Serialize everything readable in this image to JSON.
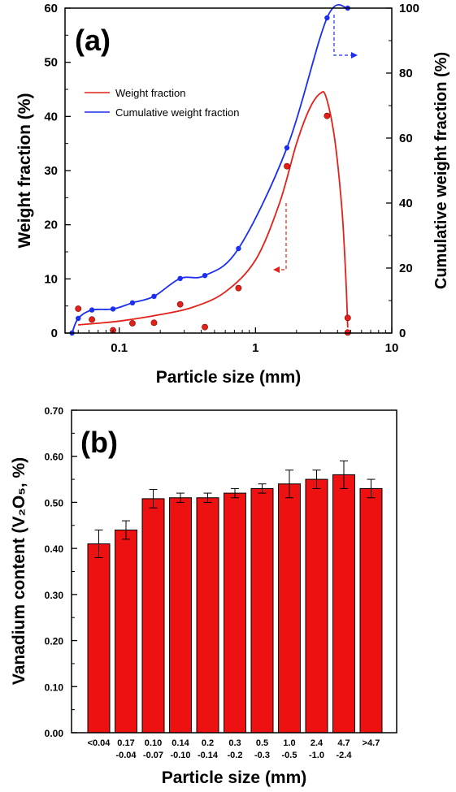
{
  "chart_data": [
    {
      "panel": "(a)",
      "type": "line",
      "xlabel": "Particle size (mm)",
      "ylabel": "Weight fraction (%)",
      "y2label": "Cumulative weight fraction (%)",
      "xscale": "log",
      "xlim": [
        0.04,
        10
      ],
      "ylim": [
        0,
        60
      ],
      "y2lim": [
        0,
        100
      ],
      "xticks": [
        0.1,
        1,
        10
      ],
      "xtick_labels": [
        "0.1",
        "1",
        "10"
      ],
      "yticks": [
        0,
        10,
        20,
        30,
        40,
        50,
        60
      ],
      "y2ticks": [
        0,
        20,
        40,
        60,
        80,
        100
      ],
      "legend_position": "upper-left",
      "series": [
        {
          "name": "Weight fraction",
          "axis": "left",
          "color": "#e32119",
          "points": [
            {
              "x": 0.05,
              "y": 4.5
            },
            {
              "x": 0.063,
              "y": 2.5
            },
            {
              "x": 0.09,
              "y": 0.5
            },
            {
              "x": 0.125,
              "y": 1.8
            },
            {
              "x": 0.18,
              "y": 1.9
            },
            {
              "x": 0.28,
              "y": 5.3
            },
            {
              "x": 0.425,
              "y": 1.1
            },
            {
              "x": 0.75,
              "y": 8.3
            },
            {
              "x": 1.7,
              "y": 30.8
            },
            {
              "x": 3.35,
              "y": 40.1
            },
            {
              "x": 4.75,
              "y": 2.8
            },
            {
              "x": 4.75,
              "y": 0.1
            }
          ],
          "fit_curve": [
            [
              0.05,
              1.5
            ],
            [
              0.1,
              2.2
            ],
            [
              0.2,
              3.4
            ],
            [
              0.35,
              4.8
            ],
            [
              0.6,
              7.6
            ],
            [
              1.0,
              13.5
            ],
            [
              1.5,
              24
            ],
            [
              2.0,
              35
            ],
            [
              2.5,
              41.5
            ],
            [
              3.0,
              44.3
            ],
            [
              3.3,
              43.5
            ],
            [
              3.8,
              36
            ],
            [
              4.3,
              23
            ],
            [
              4.6,
              10
            ],
            [
              4.75,
              1.0
            ]
          ]
        },
        {
          "name": "Cumulative weight fraction",
          "axis": "right",
          "color": "#1c2ff0",
          "points": [
            {
              "x": 0.045,
              "y": 0
            },
            {
              "x": 0.05,
              "y": 4.5
            },
            {
              "x": 0.063,
              "y": 7.1
            },
            {
              "x": 0.09,
              "y": 7.4
            },
            {
              "x": 0.125,
              "y": 9.3
            },
            {
              "x": 0.18,
              "y": 11.3
            },
            {
              "x": 0.28,
              "y": 16.8
            },
            {
              "x": 0.425,
              "y": 17.7
            },
            {
              "x": 0.75,
              "y": 26
            },
            {
              "x": 1.7,
              "y": 57
            },
            {
              "x": 3.35,
              "y": 97
            },
            {
              "x": 4.75,
              "y": 100
            }
          ]
        }
      ]
    },
    {
      "panel": "(b)",
      "type": "bar",
      "xlabel": "Particle size (mm)",
      "ylabel": "Vanadium content (V₂O₅, %)",
      "ylim": [
        0,
        0.7
      ],
      "yticks": [
        0,
        0.1,
        0.2,
        0.3,
        0.4,
        0.5,
        0.6,
        0.7
      ],
      "ytick_labels": [
        "0.00",
        "0.10",
        "0.20",
        "0.30",
        "0.40",
        "0.50",
        "0.60",
        "0.70"
      ],
      "color": "#ee1111",
      "categories": [
        [
          "<0.04"
        ],
        [
          "0.17",
          "-0.04"
        ],
        [
          "0.10",
          "-0.07"
        ],
        [
          "0.14",
          "-0.10"
        ],
        [
          "0.2",
          "-0.14"
        ],
        [
          "0.3",
          "-0.2"
        ],
        [
          "0.5",
          "-0.3"
        ],
        [
          "1.0",
          "-0.5"
        ],
        [
          "2.4",
          "-1.0"
        ],
        [
          "4.7",
          "-2.4"
        ],
        [
          ">4.7"
        ]
      ],
      "values": [
        0.41,
        0.44,
        0.508,
        0.51,
        0.51,
        0.52,
        0.53,
        0.54,
        0.55,
        0.56,
        0.53
      ],
      "errors": [
        0.03,
        0.02,
        0.02,
        0.01,
        0.01,
        0.01,
        0.01,
        0.03,
        0.02,
        0.03,
        0.02
      ]
    }
  ]
}
